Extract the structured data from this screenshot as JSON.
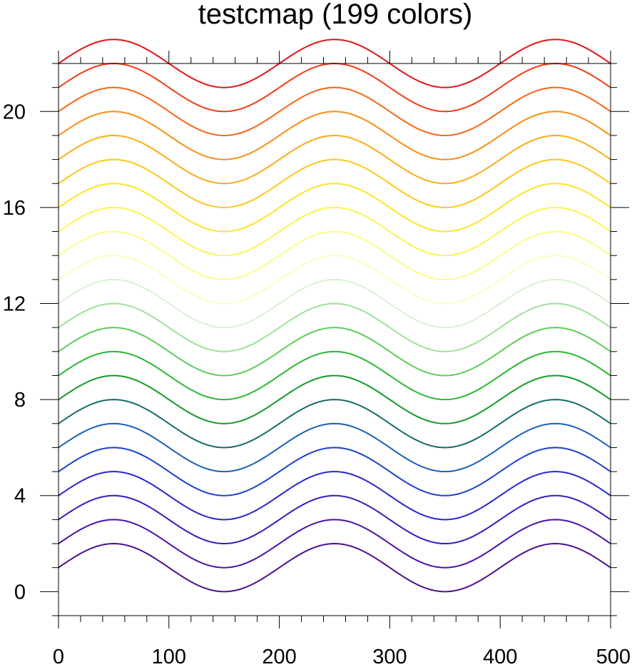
{
  "chart_data": {
    "type": "line",
    "title": "testcmap (199 colors)",
    "xlabel": "",
    "ylabel": "",
    "xlim": [
      0,
      500
    ],
    "ylim": [
      -1,
      22
    ],
    "x_ticks": [
      0,
      100,
      200,
      300,
      400,
      500
    ],
    "y_ticks": [
      0,
      4,
      8,
      12,
      16,
      20
    ],
    "x_tick_labels": [
      "0",
      "100",
      "200",
      "300",
      "400",
      "500"
    ],
    "y_tick_labels": [
      "0",
      "4",
      "8",
      "12",
      "16",
      "20"
    ],
    "grid": false,
    "function": "y = offset + sin(2*pi*x/200)",
    "x": [
      0,
      50,
      100,
      150,
      200,
      250,
      300,
      350,
      400,
      450,
      500
    ],
    "series": [
      {
        "offset": 1,
        "color": "#4a0e8c"
      },
      {
        "offset": 2,
        "color": "#4a10a8"
      },
      {
        "offset": 3,
        "color": "#3a18c0"
      },
      {
        "offset": 4,
        "color": "#2826d0"
      },
      {
        "offset": 5,
        "color": "#1a40d0"
      },
      {
        "offset": 6,
        "color": "#1a5eb8"
      },
      {
        "offset": 7,
        "color": "#166a6a"
      },
      {
        "offset": 8,
        "color": "#149a28"
      },
      {
        "offset": 9,
        "color": "#2ab834"
      },
      {
        "offset": 10,
        "color": "#5ccc58"
      },
      {
        "offset": 11,
        "color": "#9ee09a"
      },
      {
        "offset": 12,
        "color": "#d8f2d2"
      },
      {
        "offset": 13,
        "color": "#fcfcc0"
      },
      {
        "offset": 14,
        "color": "#fcfc88"
      },
      {
        "offset": 15,
        "color": "#fcf450"
      },
      {
        "offset": 16,
        "color": "#fce424"
      },
      {
        "offset": 17,
        "color": "#fcc81a"
      },
      {
        "offset": 18,
        "color": "#fcac16"
      },
      {
        "offset": 19,
        "color": "#fc8c14"
      },
      {
        "offset": 20,
        "color": "#f86414"
      },
      {
        "offset": 21,
        "color": "#f03c14"
      },
      {
        "offset": 22,
        "color": "#e01418"
      }
    ]
  }
}
